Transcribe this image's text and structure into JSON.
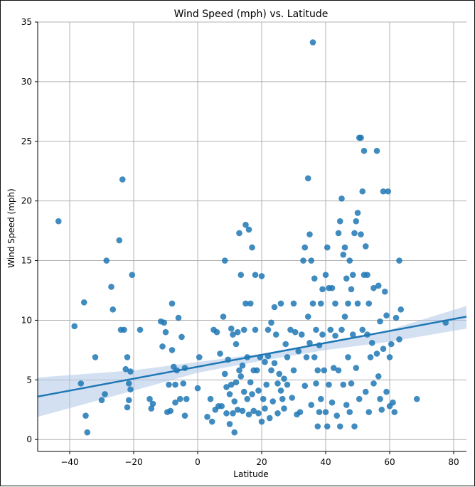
{
  "chart_data": {
    "type": "scatter",
    "title": "Wind Speed (mph) vs. Latitude",
    "xlabel": "Latitude",
    "ylabel": "Wind Speed (mph)",
    "xlim": [
      -50,
      84
    ],
    "ylim": [
      -1,
      35
    ],
    "grid": true,
    "xticks": [
      -40,
      -20,
      0,
      20,
      40,
      60,
      80
    ],
    "yticks": [
      0,
      5,
      10,
      15,
      20,
      25,
      30,
      35
    ],
    "colors": {
      "points": "#1f77b4",
      "fit_line": "#1f77b4",
      "ci_band": "#aec7e8"
    },
    "regression": {
      "line": {
        "x": [
          -50,
          84
        ],
        "y": [
          3.6,
          10.3
        ]
      },
      "ci_upper": {
        "x": [
          -50,
          -20,
          0,
          20,
          40,
          60,
          84
        ],
        "y": [
          5.2,
          5.8,
          6.5,
          7.2,
          8.1,
          9.2,
          11.2
        ]
      },
      "ci_lower": {
        "x": [
          -50,
          -20,
          0,
          20,
          40,
          60,
          84
        ],
        "y": [
          1.9,
          4.1,
          5.6,
          6.6,
          7.5,
          8.2,
          9.3
        ]
      }
    },
    "series": [
      {
        "points": [
          [
            -43.5,
            18.3
          ],
          [
            -38.5,
            9.5
          ],
          [
            -36.5,
            4.7
          ],
          [
            -35.5,
            11.5
          ],
          [
            -35,
            2.0
          ],
          [
            -34.5,
            0.6
          ],
          [
            -32,
            6.9
          ],
          [
            -30,
            3.3
          ],
          [
            -29,
            3.8
          ],
          [
            -28.5,
            15.0
          ],
          [
            -27,
            12.8
          ],
          [
            -26.5,
            10.9
          ],
          [
            -24.5,
            16.7
          ],
          [
            -24,
            9.2
          ],
          [
            -23.5,
            21.8
          ],
          [
            -23,
            9.2
          ],
          [
            -22.5,
            5.9
          ],
          [
            -22,
            2.7
          ],
          [
            -21.5,
            3.3
          ],
          [
            -21.5,
            4.7
          ],
          [
            -21,
            5.7
          ],
          [
            -21,
            4.2
          ],
          [
            -20.5,
            13.8
          ],
          [
            -22,
            6.9
          ],
          [
            -18,
            9.2
          ],
          [
            -15,
            3.4
          ],
          [
            -14.5,
            2.6
          ],
          [
            -14,
            3.0
          ],
          [
            -11.5,
            9.9
          ],
          [
            -11,
            7.8
          ],
          [
            -10.5,
            9.8
          ],
          [
            -10,
            9.0
          ],
          [
            -9.5,
            2.3
          ],
          [
            -9,
            4.6
          ],
          [
            -8.5,
            2.4
          ],
          [
            -8,
            11.4
          ],
          [
            -8,
            7.5
          ],
          [
            -7.5,
            6.1
          ],
          [
            -7,
            4.6
          ],
          [
            -7,
            3.1
          ],
          [
            -6.5,
            5.8
          ],
          [
            -6,
            10.2
          ],
          [
            -5.5,
            3.4
          ],
          [
            -5,
            8.6
          ],
          [
            -4.5,
            4.7
          ],
          [
            -4,
            2.0
          ],
          [
            -4,
            6.0
          ],
          [
            -3.5,
            3.4
          ],
          [
            0,
            4.3
          ],
          [
            0.5,
            6.9
          ],
          [
            3,
            1.9
          ],
          [
            4,
            3.4
          ],
          [
            4.5,
            1.5
          ],
          [
            5,
            9.2
          ],
          [
            5.5,
            2.5
          ],
          [
            6,
            9.0
          ],
          [
            6.5,
            2.8
          ],
          [
            7,
            7.2
          ],
          [
            7.5,
            2.8
          ],
          [
            8,
            10.3
          ],
          [
            8.5,
            15.0
          ],
          [
            8.5,
            5.5
          ],
          [
            9,
            4.4
          ],
          [
            9,
            2.2
          ],
          [
            9.5,
            6.7
          ],
          [
            10,
            1.3
          ],
          [
            10,
            3.8
          ],
          [
            10.5,
            4.6
          ],
          [
            10.5,
            9.3
          ],
          [
            11,
            2.2
          ],
          [
            11,
            8.8
          ],
          [
            11.5,
            0.6
          ],
          [
            11.5,
            3.2
          ],
          [
            12,
            8.0
          ],
          [
            12,
            4.8
          ],
          [
            12.5,
            2.5
          ],
          [
            12.5,
            9.0
          ],
          [
            13,
            17.3
          ],
          [
            13,
            5.8
          ],
          [
            13.5,
            13.8
          ],
          [
            13.5,
            5.3
          ],
          [
            14,
            6.2
          ],
          [
            14,
            2.4
          ],
          [
            14.5,
            9.2
          ],
          [
            14.5,
            4.0
          ],
          [
            15,
            18.0
          ],
          [
            15,
            11.4
          ],
          [
            15.5,
            3.4
          ],
          [
            15.5,
            6.9
          ],
          [
            16,
            17.6
          ],
          [
            16,
            2.1
          ],
          [
            16.5,
            4.8
          ],
          [
            16.5,
            11.4
          ],
          [
            17,
            16.1
          ],
          [
            17,
            3.8
          ],
          [
            17.5,
            5.8
          ],
          [
            17.5,
            2.4
          ],
          [
            18,
            13.8
          ],
          [
            18,
            9.2
          ],
          [
            18.5,
            5.8
          ],
          [
            19,
            2.2
          ],
          [
            19,
            4.1
          ],
          [
            19.5,
            6.9
          ],
          [
            20,
            13.7
          ],
          [
            20,
            1.5
          ],
          [
            20.5,
            3.4
          ],
          [
            21,
            2.6
          ],
          [
            21,
            6.5
          ],
          [
            21.5,
            4.6
          ],
          [
            22,
            7.0
          ],
          [
            22,
            9.2
          ],
          [
            22.5,
            1.8
          ],
          [
            23,
            9.8
          ],
          [
            23,
            5.8
          ],
          [
            23.5,
            3.2
          ],
          [
            24,
            11.1
          ],
          [
            24,
            6.4
          ],
          [
            24.5,
            8.8
          ],
          [
            25,
            2.2
          ],
          [
            25,
            4.7
          ],
          [
            25.5,
            5.5
          ],
          [
            26,
            11.4
          ],
          [
            26,
            4.1
          ],
          [
            26.5,
            3.4
          ],
          [
            27,
            5.1
          ],
          [
            27,
            2.6
          ],
          [
            27.5,
            8.0
          ],
          [
            28,
            4.6
          ],
          [
            28,
            6.9
          ],
          [
            29,
            9.2
          ],
          [
            29.5,
            3.5
          ],
          [
            30,
            11.4
          ],
          [
            30,
            5.8
          ],
          [
            30.5,
            9.0
          ],
          [
            31,
            2.1
          ],
          [
            31.5,
            7.4
          ],
          [
            32,
            2.3
          ],
          [
            32.5,
            8.8
          ],
          [
            33,
            15.0
          ],
          [
            33.5,
            16.1
          ],
          [
            33.5,
            4.5
          ],
          [
            34,
            6.9
          ],
          [
            34.5,
            21.9
          ],
          [
            34.5,
            10.3
          ],
          [
            35,
            17.2
          ],
          [
            35,
            8.1
          ],
          [
            35.5,
            15.0
          ],
          [
            35.5,
            2.9
          ],
          [
            36,
            33.3
          ],
          [
            36,
            11.4
          ],
          [
            36.5,
            13.5
          ],
          [
            36.5,
            6.9
          ],
          [
            37,
            9.2
          ],
          [
            37,
            4.7
          ],
          [
            37.5,
            1.1
          ],
          [
            37.5,
            5.8
          ],
          [
            38,
            7.9
          ],
          [
            38,
            2.3
          ],
          [
            38.5,
            11.4
          ],
          [
            38.5,
            3.4
          ],
          [
            39,
            12.6
          ],
          [
            39,
            8.8
          ],
          [
            39.5,
            5.8
          ],
          [
            40,
            13.8
          ],
          [
            40,
            2.3
          ],
          [
            40.5,
            16.1
          ],
          [
            40.5,
            1.1
          ],
          [
            41,
            12.7
          ],
          [
            41,
            4.6
          ],
          [
            41.5,
            9.2
          ],
          [
            42,
            12.7
          ],
          [
            42,
            3.1
          ],
          [
            42.5,
            6.0
          ],
          [
            43,
            11.4
          ],
          [
            43,
            8.7
          ],
          [
            43.5,
            2.0
          ],
          [
            44,
            17.3
          ],
          [
            44,
            5.8
          ],
          [
            44.5,
            18.3
          ],
          [
            44.5,
            1.1
          ],
          [
            45,
            20.2
          ],
          [
            45,
            9.2
          ],
          [
            45.5,
            15.5
          ],
          [
            45.5,
            4.6
          ],
          [
            46,
            16.1
          ],
          [
            46,
            10.3
          ],
          [
            46.5,
            13.5
          ],
          [
            46.5,
            2.9
          ],
          [
            47,
            11.4
          ],
          [
            47,
            6.9
          ],
          [
            47.5,
            15.0
          ],
          [
            47.5,
            2.3
          ],
          [
            48,
            12.6
          ],
          [
            48,
            4.7
          ],
          [
            48.5,
            13.8
          ],
          [
            48.5,
            8.8
          ],
          [
            49,
            17.3
          ],
          [
            49,
            1.1
          ],
          [
            49.5,
            18.3
          ],
          [
            49.5,
            6.0
          ],
          [
            50,
            19.0
          ],
          [
            50,
            11.4
          ],
          [
            50.5,
            25.3
          ],
          [
            50.5,
            3.4
          ],
          [
            51,
            25.3
          ],
          [
            51,
            17.2
          ],
          [
            51.5,
            20.8
          ],
          [
            51.5,
            9.2
          ],
          [
            52,
            24.2
          ],
          [
            52,
            13.8
          ],
          [
            52.5,
            16.2
          ],
          [
            52.5,
            4.0
          ],
          [
            53,
            13.8
          ],
          [
            53,
            8.8
          ],
          [
            53.5,
            11.4
          ],
          [
            53.5,
            2.3
          ],
          [
            54,
            6.9
          ],
          [
            54.5,
            8.1
          ],
          [
            55,
            12.7
          ],
          [
            55,
            4.7
          ],
          [
            56,
            24.2
          ],
          [
            56,
            7.2
          ],
          [
            56.5,
            12.9
          ],
          [
            56.5,
            5.3
          ],
          [
            57,
            9.9
          ],
          [
            57,
            3.4
          ],
          [
            57.5,
            2.5
          ],
          [
            58,
            20.8
          ],
          [
            58,
            7.6
          ],
          [
            58.5,
            12.4
          ],
          [
            59,
            4.0
          ],
          [
            59,
            10.4
          ],
          [
            59.5,
            20.8
          ],
          [
            60,
            6.9
          ],
          [
            60,
            2.8
          ],
          [
            60.5,
            8.0
          ],
          [
            61,
            3.1
          ],
          [
            61.5,
            2.3
          ],
          [
            62,
            10.2
          ],
          [
            63,
            15.0
          ],
          [
            63,
            8.4
          ],
          [
            63.5,
            10.9
          ],
          [
            68.5,
            3.4
          ],
          [
            77.5,
            9.8
          ]
        ]
      }
    ]
  }
}
